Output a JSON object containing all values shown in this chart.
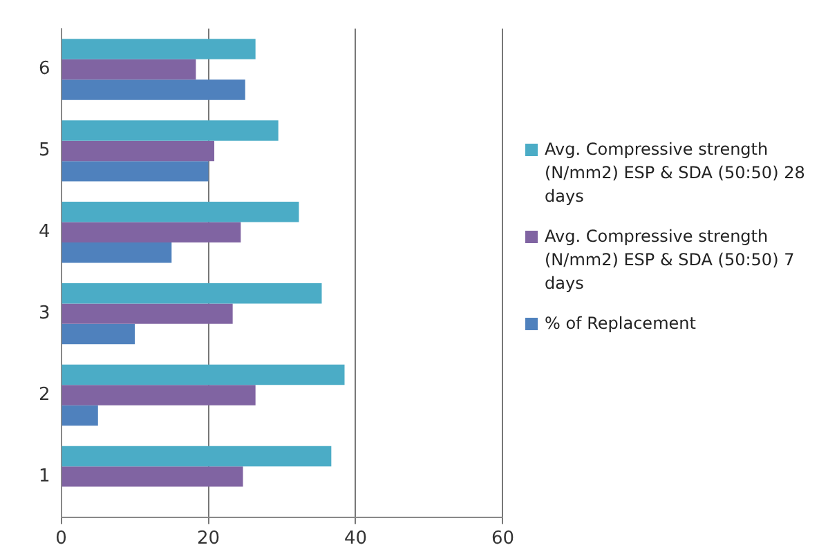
{
  "chart_data": {
    "type": "bar",
    "orientation": "horizontal",
    "categories": [
      "6",
      "5",
      "4",
      "3",
      "2",
      "1"
    ],
    "series": [
      {
        "name": "Avg. Compressive strength (N/mm2) ESP & SDA (50:50) 28 days",
        "color": "#4bacc6",
        "values": [
          26.4,
          29.5,
          32.3,
          35.4,
          38.5,
          36.7
        ]
      },
      {
        "name": "Avg. Compressive strength (N/mm2) ESP & SDA (50:50) 7 days",
        "color": "#8064a2",
        "values": [
          18.3,
          20.8,
          24.4,
          23.3,
          26.4,
          24.7
        ]
      },
      {
        "name": "% of Replacement",
        "color": "#4f81bd",
        "values": [
          25,
          20,
          15,
          10,
          5,
          0
        ]
      }
    ],
    "xlim": [
      0,
      60
    ],
    "xticks": [
      0,
      20,
      40,
      60
    ],
    "grid": "x",
    "legend": "right"
  }
}
